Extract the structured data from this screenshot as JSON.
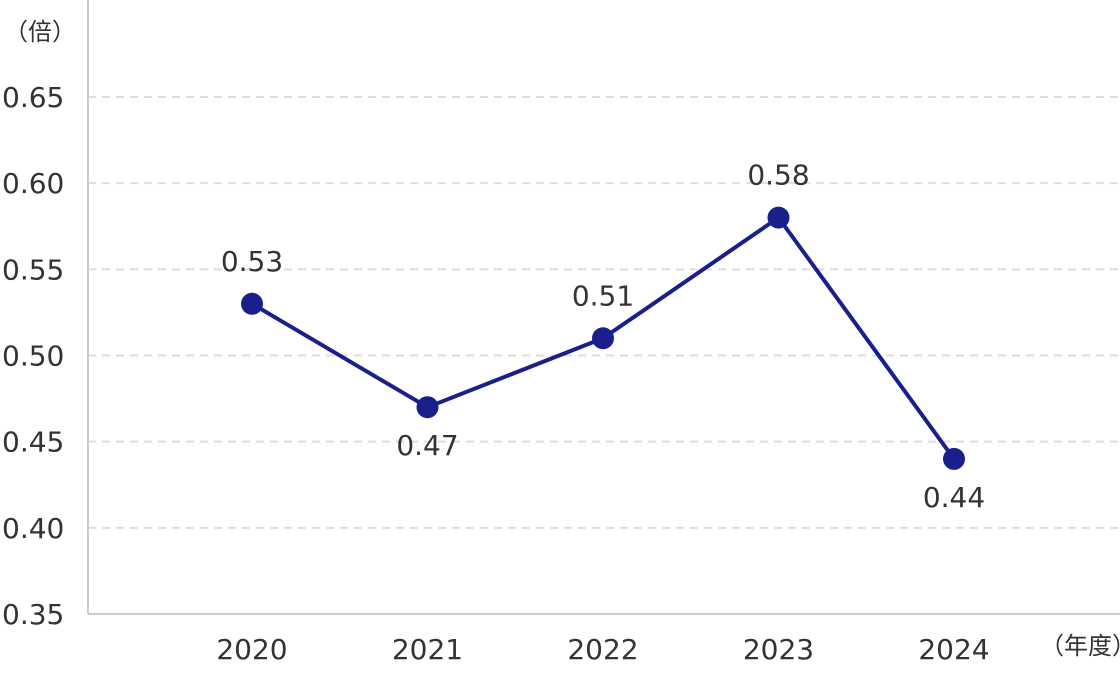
{
  "chart_data": {
    "type": "line",
    "categories": [
      "2020",
      "2021",
      "2022",
      "2023",
      "2024"
    ],
    "series": [
      {
        "values": [
          0.53,
          0.47,
          0.51,
          0.58,
          0.44
        ],
        "color": "#1a1f8c"
      }
    ],
    "data_labels": [
      "0.53",
      "0.47",
      "0.51",
      "0.58",
      "0.44"
    ],
    "y_unit_label": "（倍）",
    "x_unit_label": "（年度）",
    "ylim": [
      0.35,
      0.65
    ],
    "yticks": [
      "0.35",
      "0.40",
      "0.45",
      "0.50",
      "0.55",
      "0.60",
      "0.65"
    ],
    "ytick_values": [
      0.35,
      0.4,
      0.45,
      0.5,
      0.55,
      0.6,
      0.65
    ],
    "grid": true,
    "grid_style": "dashed",
    "legend": "none"
  }
}
